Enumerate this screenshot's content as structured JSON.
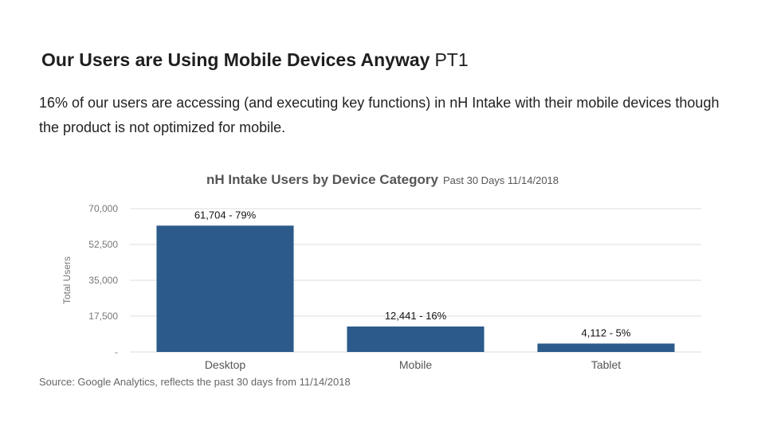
{
  "slide": {
    "title_bold": "Our Users are Using Mobile Devices Anyway",
    "title_suffix": "PT1",
    "intro": "16% of our users are accessing (and executing key functions) in nH Intake with their mobile devices though the product is not optimized for mobile.",
    "source": "Source: Google Analytics, reflects the past 30 days from 11/14/2018"
  },
  "colors": {
    "bar": "#2B5A8B",
    "grid": "#DDDDDD",
    "axis_text": "#777777",
    "title_text": "#555555"
  },
  "chart_data": {
    "type": "bar",
    "title": "nH Intake Users by Device Category",
    "subtitle": "Past 30 Days 11/14/2018",
    "xlabel": "",
    "ylabel": "Total Users",
    "categories": [
      "Desktop",
      "Mobile",
      "Tablet"
    ],
    "values": [
      61704,
      12441,
      4112
    ],
    "data_labels": [
      "61,704 - 79%",
      "12,441 - 16%",
      "4,112 - 5%"
    ],
    "ylim": [
      0,
      70000
    ],
    "yticks": [
      0,
      17500,
      35000,
      52500,
      70000
    ],
    "ytick_labels": [
      "-",
      "17,500",
      "35,000",
      "52,500",
      "70,000"
    ],
    "grid": true,
    "legend": "none"
  }
}
